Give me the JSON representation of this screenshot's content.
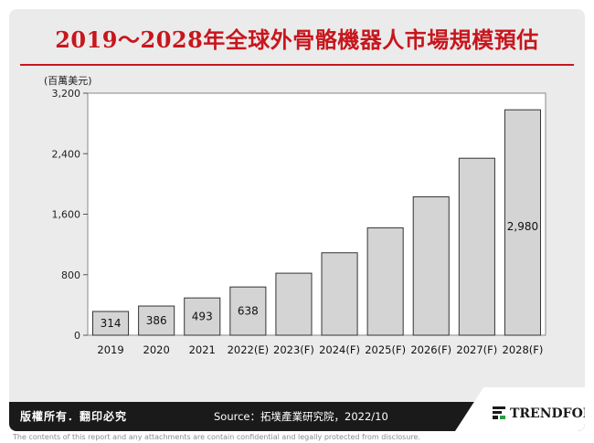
{
  "title": "2019～2028年全球外骨骼機器人市場規模預估",
  "footer": {
    "rights": "版權所有．翻印必究",
    "source": "Source：拓墣產業研究院，2022/10",
    "brand": "TRENDFORCE"
  },
  "disclaimer": "The contents of this report and any attachments are contain confidential and legally protected from disclosure.",
  "colors": {
    "title": "#c8161d",
    "bar": "#d4d4d4",
    "bar_border": "#333333",
    "footer_bg": "#1a1a1a"
  },
  "chart_data": {
    "type": "bar",
    "unit_label": "(百萬美元)",
    "categories": [
      "2019",
      "2020",
      "2021",
      "2022(E)",
      "2023(F)",
      "2024(F)",
      "2025(F)",
      "2026(F)",
      "2027(F)",
      "2028(F)"
    ],
    "values": [
      314,
      386,
      493,
      638,
      820,
      1090,
      1420,
      1830,
      2340,
      2980
    ],
    "data_labels": [
      "314",
      "386",
      "493",
      "638",
      "",
      "",
      "",
      "",
      "",
      "2,980"
    ],
    "yticks": [
      "0",
      "800",
      "1,600",
      "2,400",
      "3,200"
    ],
    "ylim": [
      0,
      3200
    ],
    "grid": false
  }
}
